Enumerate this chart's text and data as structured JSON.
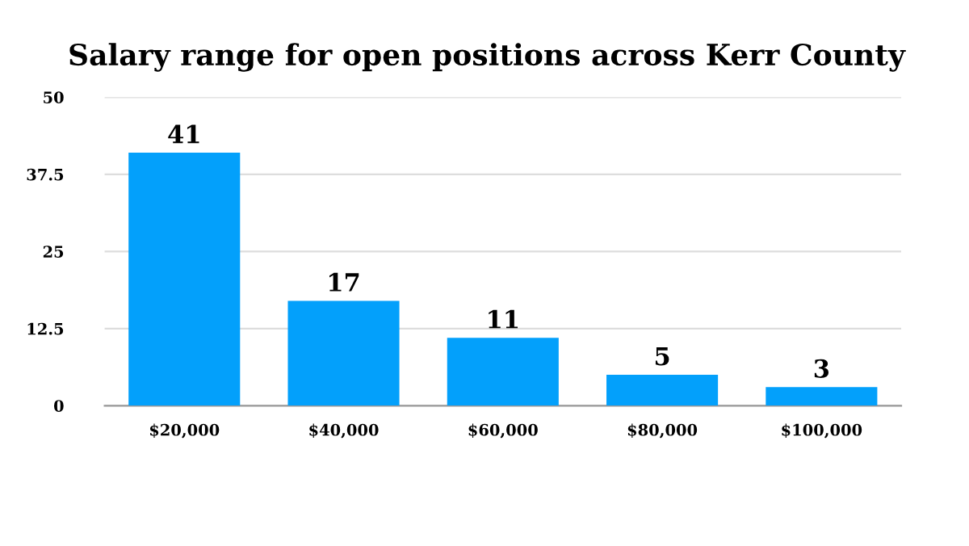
{
  "chart_data": {
    "type": "bar",
    "title": "Salary range for open positions across Kerr County",
    "categories": [
      "$20,000",
      "$40,000",
      "$60,000",
      "$80,000",
      "$100,000"
    ],
    "values": [
      41,
      17,
      11,
      5,
      3
    ],
    "color": "#03a0fb",
    "ylim": [
      0,
      50
    ],
    "yticks": [
      0,
      12.5,
      25,
      37.5,
      50
    ],
    "grid": "y",
    "data_labels": true
  }
}
